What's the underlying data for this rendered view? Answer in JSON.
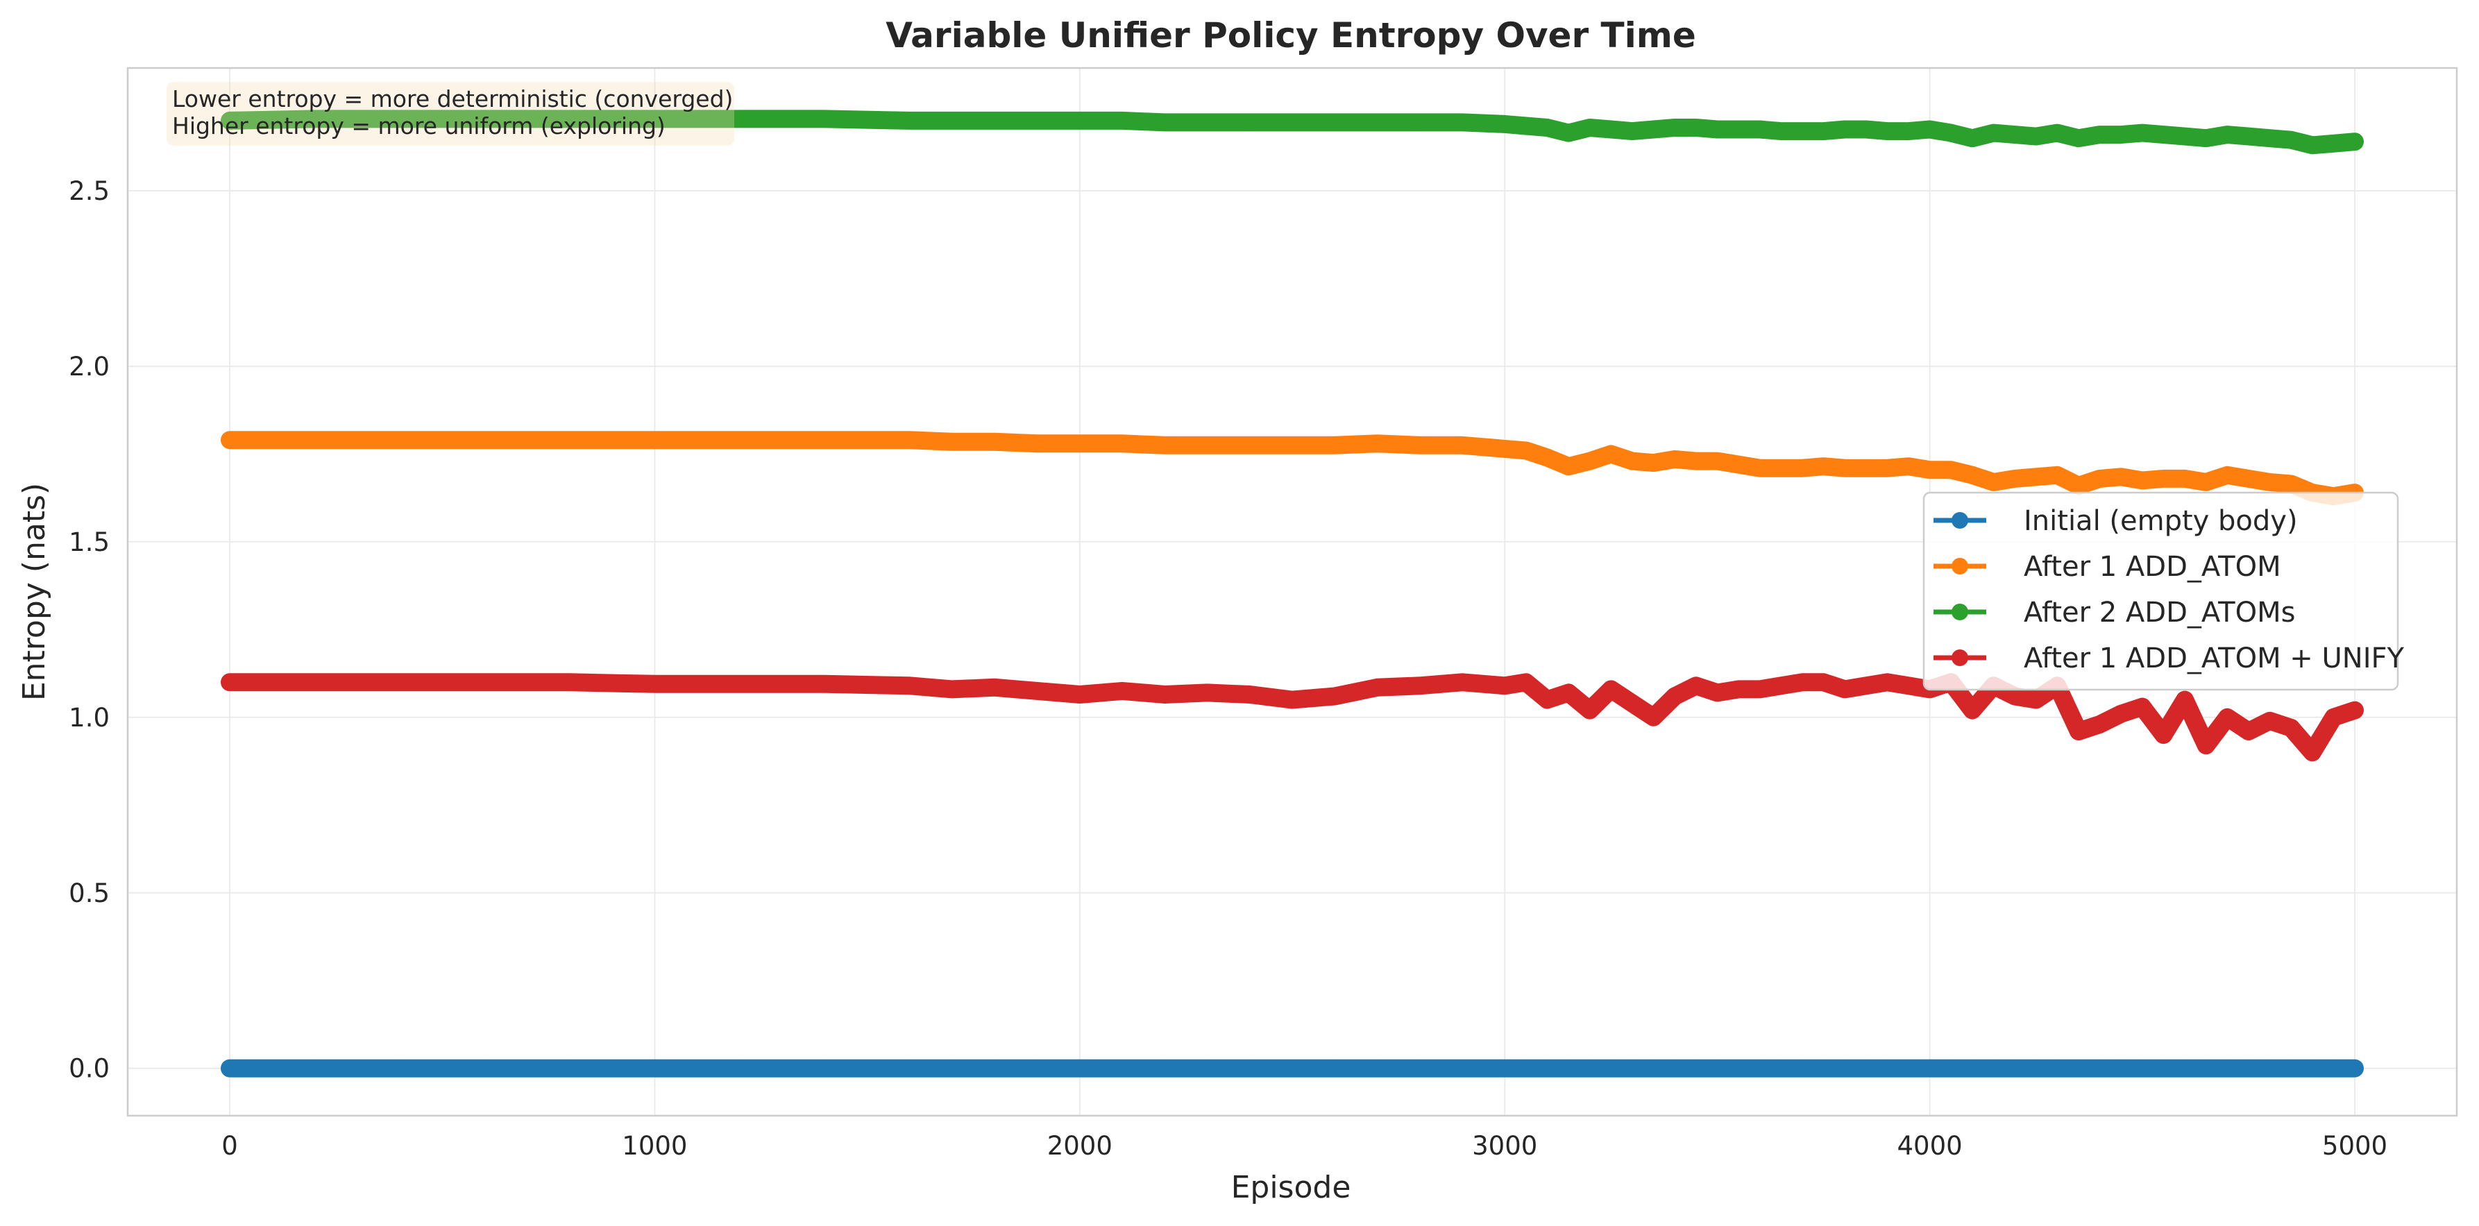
{
  "chart_data": {
    "type": "line",
    "title": "Variable Unifier Policy Entropy Over Time",
    "xlabel": "Episode",
    "ylabel": "Entropy (nats)",
    "xlim": [
      -240,
      5240
    ],
    "ylim": [
      -0.135,
      2.85
    ],
    "xticks": [
      0,
      1000,
      2000,
      3000,
      4000,
      5000
    ],
    "xtick_labels": [
      "0",
      "1000",
      "2000",
      "3000",
      "4000",
      "5000"
    ],
    "yticks": [
      0.0,
      0.5,
      1.0,
      1.5,
      2.0,
      2.5
    ],
    "ytick_labels": [
      "0.0",
      "0.5",
      "1.0",
      "1.5",
      "2.0",
      "2.5"
    ],
    "grid": true,
    "legend_position": "center-right",
    "annotation_lines": [
      "Lower entropy = more deterministic (converged)",
      "Higher entropy = more uniform (exploring)"
    ],
    "annotation_position": "top-left",
    "x": [
      0,
      200,
      400,
      600,
      800,
      1000,
      1200,
      1400,
      1600,
      1700,
      1800,
      1900,
      2000,
      2100,
      2200,
      2300,
      2400,
      2500,
      2600,
      2700,
      2800,
      2900,
      3000,
      3050,
      3100,
      3150,
      3200,
      3250,
      3300,
      3350,
      3400,
      3450,
      3500,
      3550,
      3600,
      3650,
      3700,
      3750,
      3800,
      3850,
      3900,
      3950,
      4000,
      4050,
      4100,
      4150,
      4200,
      4250,
      4300,
      4350,
      4400,
      4450,
      4500,
      4550,
      4600,
      4650,
      4700,
      4750,
      4800,
      4850,
      4900,
      4950,
      5000
    ],
    "series": [
      {
        "name": "Initial (empty body)",
        "color": "#1f77b4",
        "values": [
          0,
          0,
          0,
          0,
          0,
          0,
          0,
          0,
          0,
          0,
          0,
          0,
          0,
          0,
          0,
          0,
          0,
          0,
          0,
          0,
          0,
          0,
          0,
          0,
          0,
          0,
          0,
          0,
          0,
          0,
          0,
          0,
          0,
          0,
          0,
          0,
          0,
          0,
          0,
          0,
          0,
          0,
          0,
          0,
          0,
          0,
          0,
          0,
          0,
          0,
          0,
          0,
          0,
          0,
          0,
          0,
          0,
          0,
          0,
          0,
          0,
          0,
          0
        ]
      },
      {
        "name": "After 1 ADD_ATOM",
        "color": "#ff7f0e",
        "values": [
          1.79,
          1.79,
          1.79,
          1.79,
          1.79,
          1.79,
          1.79,
          1.79,
          1.79,
          1.785,
          1.785,
          1.78,
          1.78,
          1.78,
          1.775,
          1.775,
          1.775,
          1.775,
          1.775,
          1.78,
          1.775,
          1.775,
          1.765,
          1.76,
          1.74,
          1.715,
          1.73,
          1.75,
          1.73,
          1.725,
          1.735,
          1.73,
          1.73,
          1.72,
          1.71,
          1.71,
          1.71,
          1.715,
          1.71,
          1.71,
          1.71,
          1.715,
          1.705,
          1.705,
          1.69,
          1.67,
          1.68,
          1.685,
          1.69,
          1.66,
          1.68,
          1.685,
          1.675,
          1.68,
          1.68,
          1.67,
          1.69,
          1.68,
          1.67,
          1.665,
          1.64,
          1.63,
          1.64
        ]
      },
      {
        "name": "After 2 ADD_ATOMs",
        "color": "#2ca02c",
        "values": [
          2.7,
          2.705,
          2.705,
          2.705,
          2.705,
          2.705,
          2.705,
          2.705,
          2.7,
          2.7,
          2.7,
          2.7,
          2.7,
          2.7,
          2.695,
          2.695,
          2.695,
          2.695,
          2.695,
          2.695,
          2.695,
          2.695,
          2.69,
          2.685,
          2.68,
          2.665,
          2.68,
          2.675,
          2.67,
          2.675,
          2.68,
          2.68,
          2.675,
          2.675,
          2.675,
          2.67,
          2.67,
          2.67,
          2.675,
          2.675,
          2.67,
          2.67,
          2.675,
          2.665,
          2.65,
          2.665,
          2.66,
          2.655,
          2.665,
          2.65,
          2.66,
          2.66,
          2.665,
          2.66,
          2.655,
          2.65,
          2.66,
          2.655,
          2.65,
          2.645,
          2.63,
          2.635,
          2.64
        ]
      },
      {
        "name": "After 1 ADD_ATOM + UNIFY",
        "color": "#d62728",
        "values": [
          1.1,
          1.1,
          1.1,
          1.1,
          1.1,
          1.095,
          1.095,
          1.095,
          1.09,
          1.08,
          1.085,
          1.075,
          1.065,
          1.075,
          1.065,
          1.07,
          1.065,
          1.05,
          1.06,
          1.085,
          1.09,
          1.1,
          1.09,
          1.1,
          1.05,
          1.07,
          1.02,
          1.08,
          1.04,
          1.0,
          1.06,
          1.09,
          1.07,
          1.08,
          1.08,
          1.09,
          1.1,
          1.1,
          1.08,
          1.09,
          1.1,
          1.09,
          1.08,
          1.1,
          1.02,
          1.09,
          1.06,
          1.05,
          1.09,
          0.96,
          0.98,
          1.01,
          1.03,
          0.95,
          1.05,
          0.92,
          1.0,
          0.96,
          0.99,
          0.97,
          0.9,
          1.0,
          1.02
        ]
      }
    ]
  }
}
